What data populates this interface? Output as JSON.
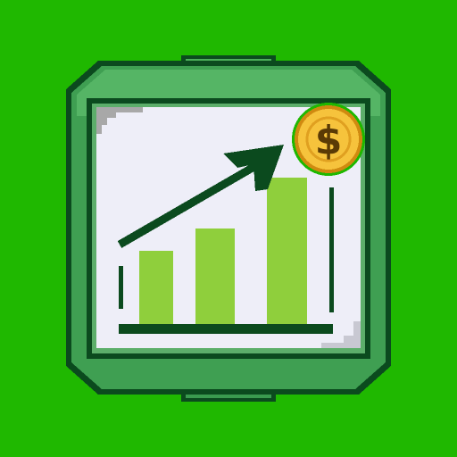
{
  "icon": {
    "symbol": "$"
  }
}
